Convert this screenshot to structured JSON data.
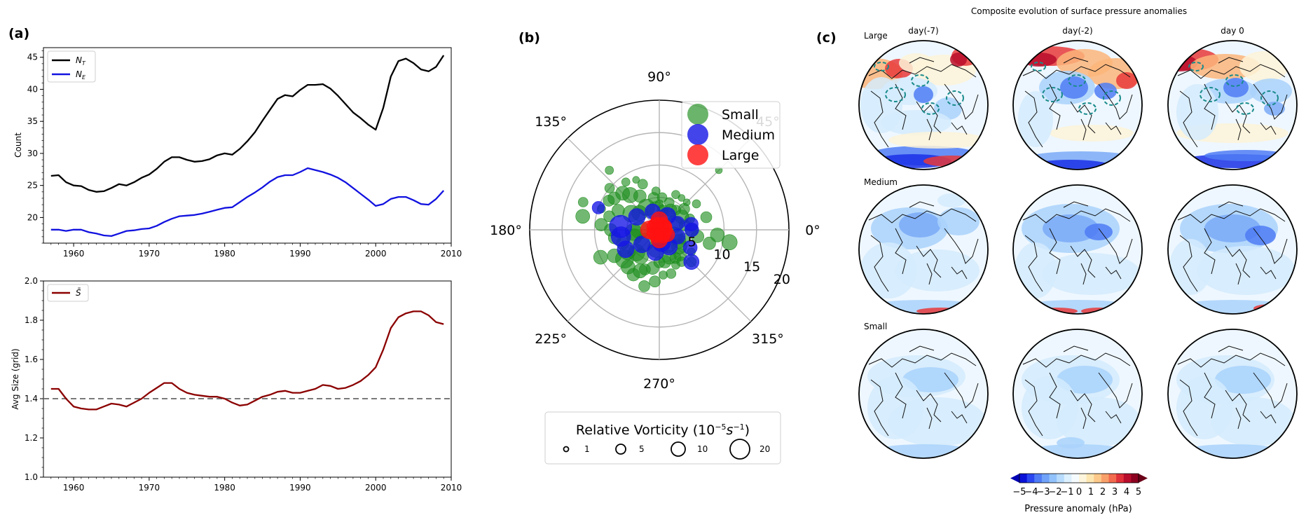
{
  "panels": {
    "a": "(a)",
    "b": "(b)",
    "c": "(c)"
  },
  "chart_data": [
    {
      "id": "a-top",
      "type": "line",
      "ylabel": "Count",
      "xlim": [
        1956,
        2010
      ],
      "ylim": [
        16,
        46.5
      ],
      "xticks": [
        1960,
        1970,
        1980,
        1990,
        2000,
        2010
      ],
      "yticks": [
        20,
        25,
        30,
        35,
        40,
        45
      ],
      "legend": "top-left",
      "x": [
        1957,
        1958,
        1959,
        1960,
        1961,
        1962,
        1963,
        1964,
        1965,
        1966,
        1967,
        1968,
        1969,
        1970,
        1971,
        1972,
        1973,
        1974,
        1975,
        1976,
        1977,
        1978,
        1979,
        1980,
        1981,
        1982,
        1983,
        1984,
        1985,
        1986,
        1987,
        1988,
        1989,
        1990,
        1991,
        1992,
        1993,
        1994,
        1995,
        1996,
        1997,
        1998,
        1999,
        2000,
        2001,
        2002,
        2003,
        2004,
        2005,
        2006,
        2007,
        2008,
        2009
      ],
      "series": [
        {
          "name": "N",
          "sub": "T",
          "color": "#000000",
          "values": [
            26.5,
            26.6,
            25.5,
            25.0,
            24.9,
            24.3,
            24.0,
            24.1,
            24.6,
            25.2,
            25.0,
            25.5,
            26.2,
            26.7,
            27.6,
            28.7,
            29.4,
            29.4,
            29.0,
            28.7,
            28.8,
            29.1,
            29.7,
            30.0,
            29.8,
            30.7,
            31.9,
            33.3,
            35.1,
            36.8,
            38.5,
            39.1,
            38.9,
            39.9,
            40.7,
            40.7,
            40.8,
            40.1,
            39.0,
            37.7,
            36.4,
            35.5,
            34.5,
            33.7,
            37.1,
            42.0,
            44.4,
            44.8,
            44.1,
            43.1,
            42.8,
            43.5,
            45.3
          ]
        },
        {
          "name": "N",
          "sub": "E",
          "color": "#1212e0",
          "values": [
            18.1,
            18.1,
            17.9,
            18.1,
            18.1,
            17.7,
            17.5,
            17.2,
            17.1,
            17.5,
            17.9,
            18.0,
            18.2,
            18.3,
            18.7,
            19.3,
            19.8,
            20.2,
            20.3,
            20.4,
            20.6,
            20.9,
            21.2,
            21.5,
            21.6,
            22.4,
            23.2,
            23.9,
            24.7,
            25.6,
            26.3,
            26.6,
            26.6,
            27.1,
            27.7,
            27.4,
            27.1,
            26.7,
            26.2,
            25.5,
            24.6,
            23.7,
            22.8,
            21.8,
            22.1,
            22.9,
            23.2,
            23.2,
            22.7,
            22.1,
            22.0,
            22.9,
            24.2
          ]
        }
      ]
    },
    {
      "id": "a-bottom",
      "type": "line",
      "ylabel": "Avg Size (grid)",
      "xlim": [
        1956,
        2010
      ],
      "ylim": [
        1.0,
        2.0
      ],
      "xticks": [
        1960,
        1970,
        1980,
        1990,
        2000,
        2010
      ],
      "yticks": [
        1.0,
        1.2,
        1.4,
        1.6,
        1.8,
        2.0
      ],
      "hline": 1.4,
      "legend": "top-left",
      "x": [
        1957,
        1958,
        1959,
        1960,
        1961,
        1962,
        1963,
        1964,
        1965,
        1966,
        1967,
        1968,
        1969,
        1970,
        1971,
        1972,
        1973,
        1974,
        1975,
        1976,
        1977,
        1978,
        1979,
        1980,
        1981,
        1982,
        1983,
        1984,
        1985,
        1986,
        1987,
        1988,
        1989,
        1990,
        1991,
        1992,
        1993,
        1994,
        1995,
        1996,
        1997,
        1998,
        1999,
        2000,
        2001,
        2002,
        2003,
        2004,
        2005,
        2006,
        2007,
        2008,
        2009
      ],
      "series": [
        {
          "name": "S̄",
          "color": "#8b0000",
          "values": [
            1.45,
            1.45,
            1.4,
            1.36,
            1.35,
            1.345,
            1.345,
            1.36,
            1.375,
            1.37,
            1.36,
            1.38,
            1.4,
            1.43,
            1.455,
            1.48,
            1.48,
            1.45,
            1.43,
            1.42,
            1.415,
            1.41,
            1.41,
            1.4,
            1.38,
            1.365,
            1.37,
            1.39,
            1.41,
            1.42,
            1.435,
            1.44,
            1.43,
            1.43,
            1.44,
            1.45,
            1.47,
            1.465,
            1.45,
            1.455,
            1.47,
            1.49,
            1.52,
            1.56,
            1.65,
            1.76,
            1.815,
            1.835,
            1.845,
            1.845,
            1.825,
            1.79,
            1.78
          ]
        }
      ]
    },
    {
      "id": "b",
      "type": "scatter",
      "projection": "polar",
      "angle_ticks": [
        "0°",
        "45°",
        "90°",
        "135°",
        "180°",
        "225°",
        "270°",
        "315°"
      ],
      "radial_ticks": [
        "5",
        "10",
        "15",
        "20"
      ],
      "rlim": [
        0,
        20
      ],
      "legend": "top-right",
      "series": [
        {
          "name": "Small",
          "color": "#1c8c1c",
          "points": [
            [
              170,
              12,
              10
            ],
            [
              160,
              12.5,
              7
            ],
            [
              150,
              9,
              8
            ],
            [
              145,
              8.5,
              9
            ],
            [
              140,
              10,
              7
            ],
            [
              135,
              8,
              10
            ],
            [
              130,
              7,
              11
            ],
            [
              120,
              6,
              9
            ],
            [
              110,
              7.5,
              7
            ],
            [
              100,
              5,
              8
            ],
            [
              90,
              4,
              6
            ],
            [
              80,
              3,
              8
            ],
            [
              70,
              4.5,
              7
            ],
            [
              60,
              3.5,
              9
            ],
            [
              50,
              4,
              7
            ],
            [
              40,
              5,
              8
            ],
            [
              30,
              4,
              10
            ],
            [
              20,
              5,
              7
            ],
            [
              10,
              4,
              8
            ],
            [
              0,
              5,
              9
            ],
            [
              -10,
              6,
              9
            ],
            [
              -15,
              8,
              9
            ],
            [
              -20,
              4,
              8
            ],
            [
              -30,
              3.5,
              10
            ],
            [
              -40,
              4,
              11
            ],
            [
              -50,
              5,
              9
            ],
            [
              -60,
              5,
              8
            ],
            [
              -70,
              4.5,
              10
            ],
            [
              -80,
              5,
              9
            ],
            [
              -90,
              5,
              8
            ],
            [
              -100,
              6,
              9
            ],
            [
              -110,
              6.5,
              8
            ],
            [
              -115,
              7,
              10
            ],
            [
              -120,
              8,
              9
            ],
            [
              -125,
              5,
              11
            ],
            [
              -130,
              7.5,
              10
            ],
            [
              -140,
              7,
              13
            ],
            [
              -150,
              8,
              10
            ],
            [
              -155,
              10,
              10
            ],
            [
              -160,
              6,
              9
            ],
            [
              -170,
              7,
              9
            ],
            [
              180,
              7.5,
              9
            ],
            [
              175,
              9,
              9
            ],
            [
              165,
              8,
              8
            ],
            [
              155,
              7,
              9
            ],
            [
              125,
              9,
              6
            ],
            [
              115,
              8.5,
              5
            ],
            [
              95,
              6,
              6
            ],
            [
              85,
              5,
              7
            ],
            [
              65,
              6,
              6
            ],
            [
              55,
              6,
              5
            ],
            [
              45,
              6,
              5
            ],
            [
              35,
              7,
              6
            ],
            [
              -35,
              6,
              6
            ],
            [
              -45,
              7,
              7
            ],
            [
              -55,
              6,
              7
            ],
            [
              -65,
              6,
              6
            ],
            [
              -75,
              7,
              7
            ],
            [
              -85,
              7,
              6
            ],
            [
              -95,
              8,
              8
            ],
            [
              -105,
              9,
              8
            ],
            [
              -135,
              5,
              12
            ],
            [
              -145,
              6,
              11
            ],
            [
              -165,
              4,
              11
            ],
            [
              -175,
              4,
              12
            ],
            [
              150,
              5,
              12
            ],
            [
              140,
              4,
              11
            ],
            [
              120,
              4,
              12
            ],
            [
              100,
              3,
              13
            ],
            [
              60,
              2.5,
              12
            ],
            [
              20,
              2.5,
              12
            ],
            [
              -20,
              2.5,
              12
            ],
            [
              -60,
              2.5,
              13
            ],
            [
              -100,
              3,
              12
            ],
            [
              -140,
              3,
              13
            ],
            [
              180,
              3,
              13
            ],
            [
              -10,
              11,
              11
            ],
            [
              -5,
              9,
              10
            ],
            [
              15,
              7.5,
              8
            ],
            [
              160,
              9.5,
              6
            ],
            [
              130,
              12,
              6
            ],
            [
              45,
              13,
              5
            ]
          ]
        },
        {
          "name": "Medium",
          "color": "#1515e6",
          "points": [
            [
              160,
              10,
              9
            ],
            [
              175,
              6,
              16
            ],
            [
              -170,
              6,
              14
            ],
            [
              150,
              4,
              12
            ],
            [
              110,
              3,
              11
            ],
            [
              60,
              2.5,
              12
            ],
            [
              20,
              3,
              10
            ],
            [
              -20,
              3,
              11
            ],
            [
              -60,
              3,
              12
            ],
            [
              -100,
              3.5,
              12
            ],
            [
              -140,
              3.5,
              12
            ],
            [
              -150,
              6,
              12
            ],
            [
              -30,
              5.5,
              10
            ],
            [
              -45,
              7,
              11
            ],
            [
              10,
              5,
              10
            ],
            [
              0,
              5,
              10
            ],
            [
              -80,
              2,
              13
            ]
          ]
        },
        {
          "name": "Large",
          "color": "#ff1111",
          "points": [
            [
              0,
              0.5,
              14
            ],
            [
              90,
              1.5,
              12
            ],
            [
              180,
              1.5,
              13
            ],
            [
              -90,
              1.5,
              12
            ],
            [
              30,
              1,
              10
            ],
            [
              -30,
              1.5,
              10
            ],
            [
              150,
              1,
              10
            ],
            [
              -150,
              1,
              10
            ],
            [
              60,
              1,
              10
            ],
            [
              -60,
              1,
              11
            ],
            [
              120,
              1,
              10
            ],
            [
              -120,
              1,
              10
            ]
          ]
        }
      ],
      "size_legend": {
        "title": "Relative Vorticity (10",
        "title_exp": "−5",
        "title_unit": "s",
        "title_unit_exp": "−1",
        "title_end": ")",
        "entries": [
          "1",
          "5",
          "10",
          "20"
        ]
      }
    },
    {
      "id": "c",
      "type": "heatmap",
      "title": "Composite evolution of surface pressure anomalies",
      "columns": [
        "day(-7)",
        "day(-2)",
        "day 0"
      ],
      "rows": [
        "Large",
        "Medium",
        "Small"
      ],
      "colorbar_label": "Pressure anomaly (hPa)",
      "colorbar_ticks": [
        "−5",
        "−4",
        "−3",
        "−2",
        "−1",
        "0",
        "1",
        "2",
        "3",
        "4",
        "5"
      ],
      "colorbar_colors": [
        "#0a12d8",
        "#2a46f0",
        "#4f7cf5",
        "#6fa2f8",
        "#92c2fb",
        "#b8dcfd",
        "#dcf0fe",
        "#f6fbfe",
        "#fdf6dc",
        "#fde6b0",
        "#fcc98a",
        "#f9a06a",
        "#f26b4f",
        "#e0313a",
        "#b80d2c",
        "#8c0020"
      ]
    }
  ]
}
